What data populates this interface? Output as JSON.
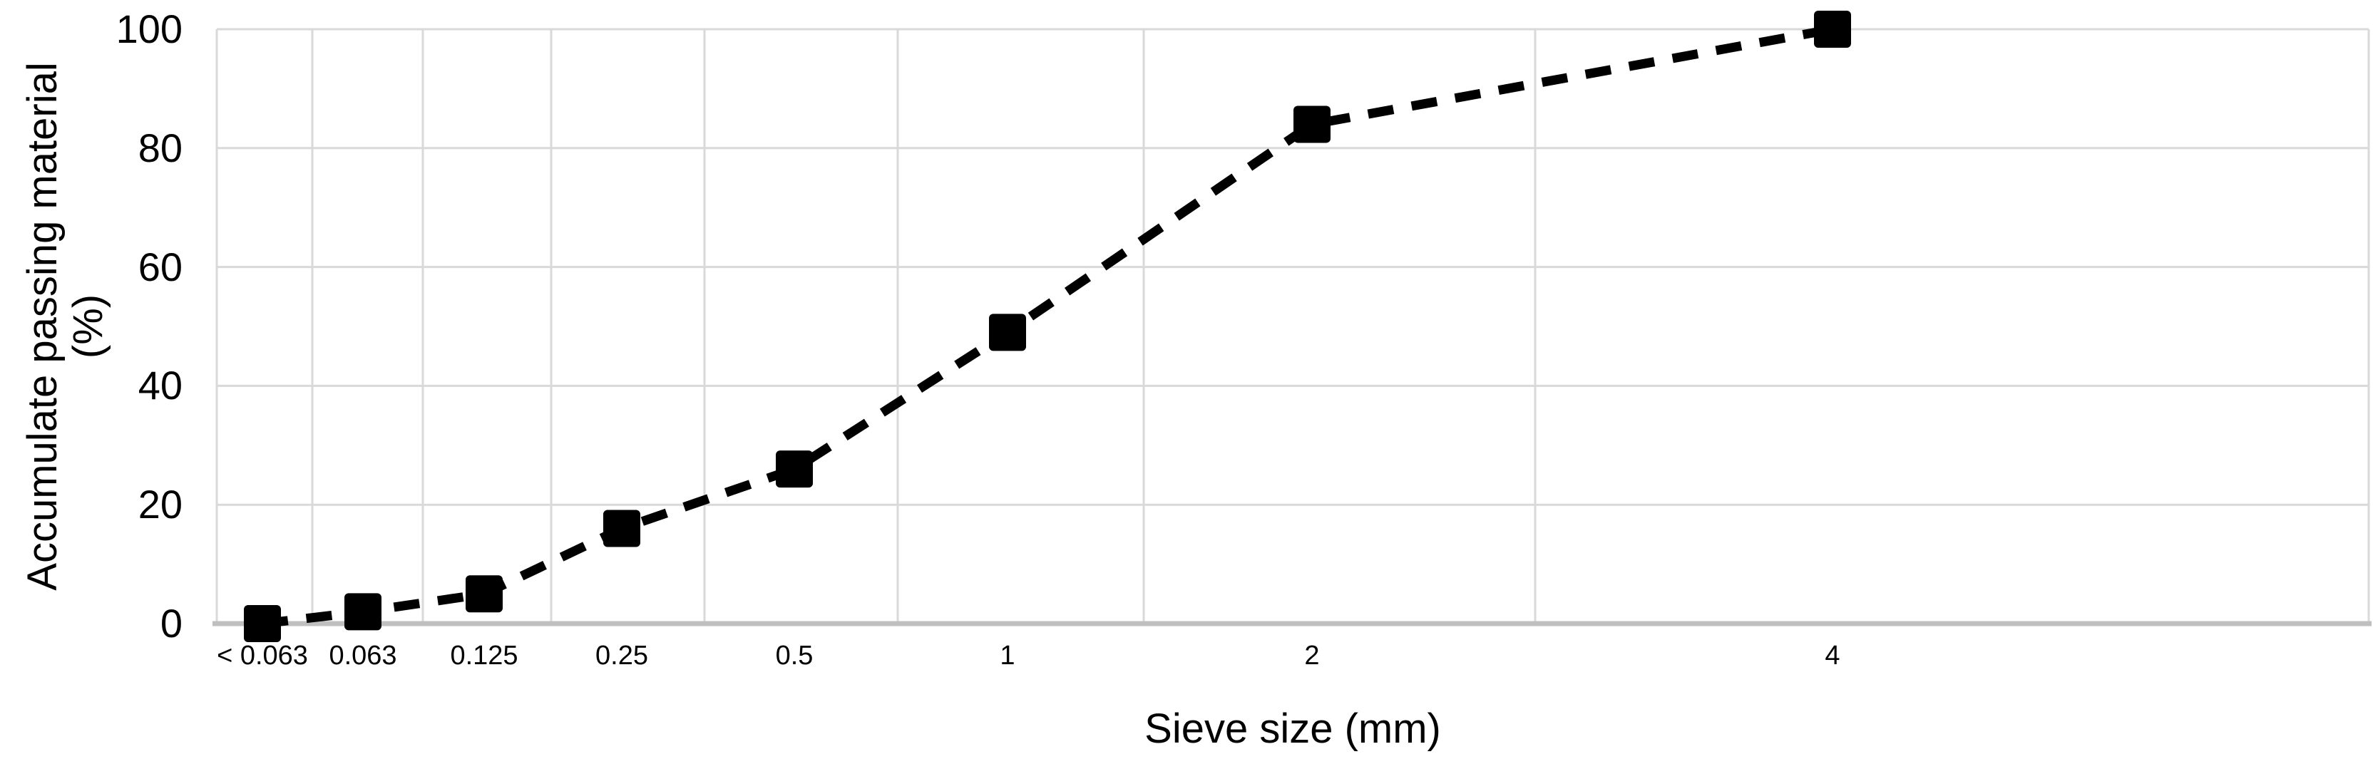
{
  "chart_data": {
    "type": "line",
    "title": "",
    "xlabel": "Sieve size (mm)",
    "ylabel": "Accumulate passing material (%)",
    "ylabel_lines": [
      "Accumulate passing material",
      "(%)"
    ],
    "categories": [
      "< 0.063",
      "0.063",
      "0.125",
      "0.25",
      "0.5",
      "1",
      "2",
      "4"
    ],
    "values": [
      0,
      2,
      5,
      16,
      26,
      49,
      84,
      100
    ],
    "yticks": [
      0,
      20,
      40,
      60,
      80,
      100
    ],
    "ylim": [
      0,
      100
    ],
    "grid": true,
    "legend": "none",
    "series_style": {
      "line": "dashed",
      "marker": "square",
      "color": "#000000"
    },
    "x_axis_note": "non-uniform category spacing (sieve sizes doubling)"
  },
  "colors": {
    "background": "#ffffff",
    "gridline": "#d9d9d9",
    "axis_line": "#bfbfbf",
    "series": "#000000",
    "text": "#000000"
  }
}
